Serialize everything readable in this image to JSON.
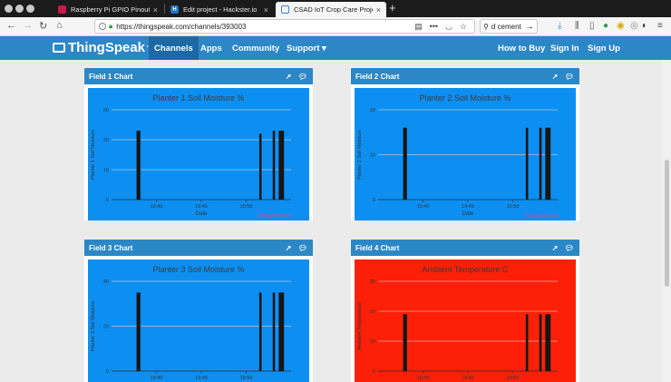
{
  "browser": {
    "tabs": [
      {
        "title": "Raspberry Pi GPIO Pinout",
        "favicon_color": "#c51a4a",
        "active": false
      },
      {
        "title": "Edit project - Hackster.io",
        "favicon_color": "#1d72c4",
        "active": false
      },
      {
        "title": "CSAD IoT Crop Care Project - T",
        "favicon_color": "#3a86c9",
        "active": true
      }
    ],
    "url": "https://thingspeak.com/channels/393003",
    "search_text": "d cement"
  },
  "nav": {
    "brand": "ThingSpeak",
    "brand_mark": "™",
    "items_left": [
      "Channels",
      "Apps",
      "Community",
      "Support ▾"
    ],
    "active_item": "Channels",
    "items_right": [
      "How to Buy",
      "Sign In",
      "Sign Up"
    ]
  },
  "panels": [
    {
      "header": "Field 1 Chart"
    },
    {
      "header": "Field 2 Chart"
    },
    {
      "header": "Field 3 Chart"
    },
    {
      "header": "Field 4 Chart"
    }
  ],
  "chart_data": [
    {
      "type": "bar",
      "title": "Planter 1 Soil Moisture %",
      "xlabel": "Date",
      "ylabel": "Planter 1 Soil Moisture",
      "background": "#0d8ff2",
      "credit": "ThingSpeak.com",
      "x_ticks": [
        "19:40",
        "19:45",
        "19:50"
      ],
      "y_ticks": [
        0,
        10,
        20,
        30
      ],
      "ylim": [
        0,
        30
      ],
      "x": [
        "19:37:55",
        "19:38:05",
        "19:51:35",
        "19:53:05",
        "19:53:45",
        "19:53:55",
        "19:54:05"
      ],
      "values": [
        23,
        23,
        22,
        23,
        23,
        23,
        23
      ]
    },
    {
      "type": "bar",
      "title": "Planter 2 Soil Moisture %",
      "xlabel": "Date",
      "ylabel": "Planter 2 Soil Moisture",
      "background": "#0d8ff2",
      "credit": "ThingSpeak.com",
      "x_ticks": [
        "19:40",
        "19:45",
        "19:50"
      ],
      "y_ticks": [
        0,
        10,
        20
      ],
      "ylim": [
        0,
        20
      ],
      "x": [
        "19:37:55",
        "19:38:05",
        "19:51:35",
        "19:53:05",
        "19:53:45",
        "19:53:55",
        "19:54:05"
      ],
      "values": [
        16,
        16,
        16,
        16,
        16,
        16,
        16
      ]
    },
    {
      "type": "bar",
      "title": "Planter 3 Soil Moisture %",
      "xlabel": "Date",
      "ylabel": "Planter 3 Soil Moisture",
      "background": "#0d8ff2",
      "credit": "ThingSpeak.com",
      "x_ticks": [
        "19:40",
        "19:45",
        "19:50"
      ],
      "y_ticks": [
        0,
        20,
        40
      ],
      "ylim": [
        0,
        40
      ],
      "x": [
        "19:37:55",
        "19:38:05",
        "19:51:35",
        "19:53:05",
        "19:53:45",
        "19:53:55",
        "19:54:05"
      ],
      "values": [
        35,
        35,
        35,
        35,
        35,
        35,
        35
      ]
    },
    {
      "type": "bar",
      "title": "Ambient Temperature C",
      "xlabel": "Date",
      "ylabel": "Ambient Temperature",
      "background": "#fb2007",
      "credit": "ThingSpeak.com",
      "x_ticks": [
        "19:40",
        "19:45",
        "19:50"
      ],
      "y_ticks": [
        0,
        10,
        20,
        30
      ],
      "ylim": [
        0,
        30
      ],
      "x": [
        "19:37:55",
        "19:38:05",
        "19:51:35",
        "19:53:05",
        "19:53:45",
        "19:53:55",
        "19:54:05"
      ],
      "values": [
        19,
        19,
        19,
        19,
        19,
        19,
        19
      ]
    }
  ]
}
